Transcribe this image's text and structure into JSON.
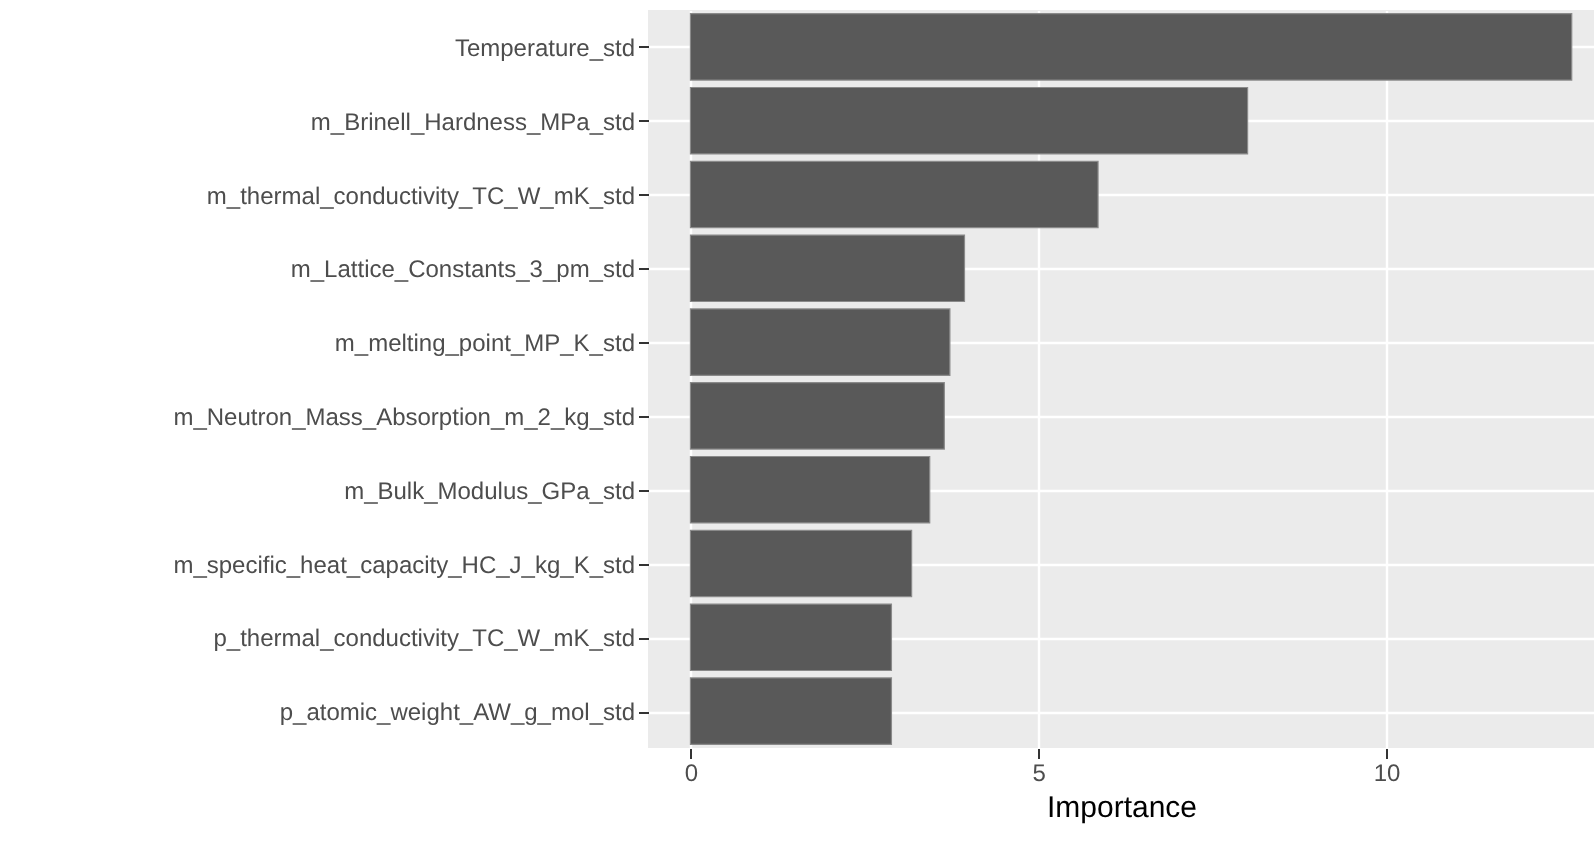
{
  "chart_data": {
    "type": "bar",
    "orientation": "horizontal",
    "xlabel": "Importance",
    "categories": [
      "Temperature_std",
      "m_Brinell_Hardness_MPa_std",
      "m_thermal_conductivity_TC_W_mK_std",
      "m_Lattice_Constants_3_pm_std",
      "m_melting_point_MP_K_std",
      "m_Neutron_Mass_Absorption_m_2_kg_std",
      "m_Bulk_Modulus_GPa_std",
      "m_specific_heat_capacity_HC_J_kg_K_std",
      "p_thermal_conductivity_TC_W_mK_std",
      "p_atomic_weight_AW_g_mol_std"
    ],
    "values": [
      12.67,
      8.01,
      5.86,
      3.94,
      3.73,
      3.65,
      3.44,
      3.18,
      2.89,
      2.89
    ],
    "color": "#595959",
    "xlim": [
      -0.61,
      12.99
    ],
    "xticks": [
      0,
      5,
      10
    ],
    "grid": true
  }
}
